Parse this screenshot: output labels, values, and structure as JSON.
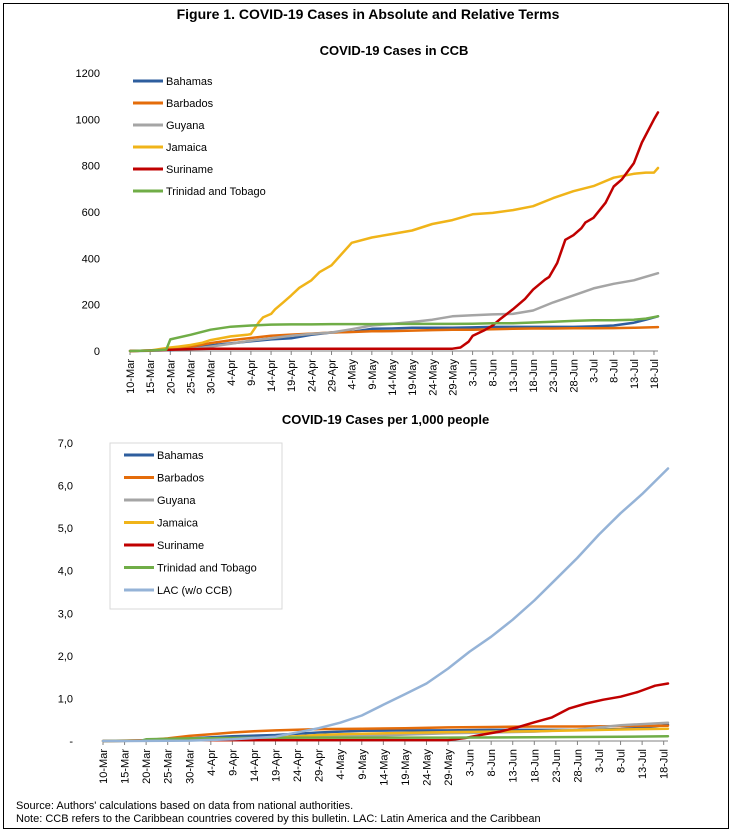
{
  "figure": {
    "title": "Figure 1. COVID-19 Cases in Absolute and Relative Terms",
    "source": "Source: Authors' calculations based on data from national authorities.",
    "note": "Note: CCB refers to the Caribbean countries covered by this bulletin. LAC: Latin America and the Caribbean"
  },
  "chart_data": [
    {
      "type": "line",
      "title": "COVID-19 Cases in CCB",
      "xlabel": "",
      "ylabel": "",
      "categories": [
        "10-Mar",
        "15-Mar",
        "20-Mar",
        "25-Mar",
        "30-Mar",
        "4-Apr",
        "9-Apr",
        "14-Apr",
        "19-Apr",
        "24-Apr",
        "29-Apr",
        "4-May",
        "9-May",
        "14-May",
        "19-May",
        "24-May",
        "29-May",
        "3-Jun",
        "8-Jun",
        "13-Jun",
        "18-Jun",
        "23-Jun",
        "28-Jun",
        "3-Jul",
        "8-Jul",
        "13-Jul",
        "18-Jul"
      ],
      "x_day_range": [
        0,
        131
      ],
      "ylim": [
        0,
        1200
      ],
      "yticks": [
        0,
        200,
        400,
        600,
        800,
        1000,
        1200
      ],
      "ytick_labels": [
        "0",
        "200",
        "400",
        "600",
        "800",
        "1000",
        "1200"
      ],
      "legend_position": "top-left",
      "series": [
        {
          "name": "Bahamas",
          "color": "#2e5e9e",
          "x": [
            0,
            5,
            10,
            15,
            20,
            25,
            30,
            35,
            40,
            45,
            50,
            55,
            60,
            65,
            70,
            75,
            80,
            85,
            90,
            95,
            100,
            105,
            110,
            115,
            120,
            125,
            128,
            131
          ],
          "y": [
            0,
            1,
            4,
            11,
            24,
            33,
            42,
            50,
            55,
            70,
            80,
            83,
            96,
            97,
            100,
            100,
            100,
            102,
            104,
            104,
            104,
            104,
            104,
            106,
            110,
            122,
            135,
            150
          ]
        },
        {
          "name": "Barbados",
          "color": "#e46c0a",
          "x": [
            0,
            5,
            10,
            15,
            20,
            25,
            30,
            35,
            40,
            45,
            50,
            55,
            60,
            65,
            70,
            75,
            80,
            85,
            90,
            95,
            100,
            105,
            110,
            115,
            120,
            125,
            131
          ],
          "y": [
            0,
            2,
            6,
            18,
            34,
            46,
            56,
            66,
            71,
            75,
            80,
            82,
            85,
            86,
            88,
            90,
            92,
            92,
            94,
            96,
            97,
            97,
            98,
            98,
            99,
            100,
            103
          ]
        },
        {
          "name": "Guyana",
          "color": "#a5a5a5",
          "x": [
            0,
            5,
            10,
            15,
            20,
            25,
            30,
            35,
            40,
            45,
            50,
            55,
            60,
            65,
            70,
            75,
            80,
            85,
            90,
            95,
            100,
            105,
            110,
            115,
            120,
            125,
            131
          ],
          "y": [
            0,
            1,
            5,
            8,
            19,
            31,
            45,
            55,
            66,
            74,
            80,
            94,
            110,
            117,
            125,
            135,
            150,
            154,
            158,
            160,
            175,
            210,
            240,
            270,
            290,
            305,
            336
          ]
        },
        {
          "name": "Jamaica",
          "color": "#f0b419",
          "x": [
            0,
            5,
            10,
            12,
            15,
            18,
            20,
            25,
            29,
            30,
            32,
            33,
            35,
            36,
            38,
            40,
            42,
            45,
            47,
            50,
            55,
            60,
            65,
            70,
            75,
            80,
            85,
            90,
            95,
            100,
            105,
            110,
            115,
            120,
            125,
            128,
            130,
            131
          ],
          "y": [
            0,
            2,
            15,
            19,
            26,
            36,
            47,
            63,
            70,
            73,
            125,
            145,
            160,
            180,
            210,
            240,
            273,
            305,
            340,
            370,
            467,
            490,
            505,
            520,
            548,
            565,
            590,
            596,
            608,
            625,
            660,
            690,
            712,
            748,
            765,
            770,
            770,
            790
          ]
        },
        {
          "name": "Suriname",
          "color": "#c00000",
          "x": [
            0,
            5,
            10,
            15,
            20,
            25,
            30,
            35,
            40,
            45,
            50,
            55,
            60,
            65,
            70,
            75,
            80,
            82,
            84,
            85,
            87,
            88,
            90,
            92,
            95,
            98,
            100,
            103,
            104,
            106,
            108,
            110,
            112,
            113,
            115,
            118,
            120,
            122,
            125,
            127,
            130,
            131
          ],
          "y": [
            0,
            2,
            5,
            8,
            10,
            10,
            10,
            10,
            10,
            10,
            10,
            10,
            10,
            10,
            10,
            10,
            10,
            15,
            40,
            65,
            82,
            90,
            110,
            140,
            180,
            225,
            265,
            308,
            320,
            380,
            480,
            500,
            530,
            555,
            575,
            640,
            710,
            740,
            810,
            900,
            1000,
            1030
          ]
        },
        {
          "name": "Trinidad and Tobago",
          "color": "#70ad47",
          "x": [
            0,
            5,
            9,
            10,
            15,
            20,
            25,
            30,
            35,
            40,
            45,
            50,
            55,
            60,
            65,
            70,
            75,
            80,
            85,
            90,
            95,
            100,
            105,
            110,
            115,
            120,
            125,
            128,
            131
          ],
          "y": [
            0,
            2,
            6,
            50,
            70,
            92,
            105,
            110,
            114,
            115,
            115,
            116,
            116,
            116,
            117,
            117,
            117,
            117,
            118,
            120,
            120,
            123,
            126,
            130,
            133,
            133,
            135,
            140,
            150
          ]
        }
      ]
    },
    {
      "type": "line",
      "title": "COVID-19 Cases per 1,000 people",
      "xlabel": "",
      "ylabel": "",
      "categories": [
        "10-Mar",
        "15-Mar",
        "20-Mar",
        "25-Mar",
        "30-Mar",
        "4-Apr",
        "9-Apr",
        "14-Apr",
        "19-Apr",
        "24-Apr",
        "29-Apr",
        "4-May",
        "9-May",
        "14-May",
        "19-May",
        "24-May",
        "29-May",
        "3-Jun",
        "8-Jun",
        "13-Jun",
        "18-Jun",
        "23-Jun",
        "28-Jun",
        "3-Jul",
        "8-Jul",
        "13-Jul",
        "18-Jul"
      ],
      "x_day_range": [
        0,
        131
      ],
      "ylim": [
        0,
        7
      ],
      "yticks": [
        0,
        1,
        2,
        3,
        4,
        5,
        6,
        7
      ],
      "ytick_labels": [
        "-",
        "1,0",
        "2,0",
        "3,0",
        "4,0",
        "5,0",
        "6,0",
        "7,0"
      ],
      "legend_position": "top-left",
      "series": [
        {
          "name": "Bahamas",
          "color": "#2e5e9e",
          "x": [
            0,
            10,
            20,
            30,
            40,
            50,
            60,
            70,
            80,
            90,
            100,
            110,
            120,
            125,
            131
          ],
          "y": [
            0,
            0.01,
            0.06,
            0.11,
            0.14,
            0.2,
            0.24,
            0.25,
            0.25,
            0.26,
            0.26,
            0.26,
            0.28,
            0.31,
            0.38
          ]
        },
        {
          "name": "Barbados",
          "color": "#e46c0a",
          "x": [
            0,
            10,
            15,
            20,
            25,
            30,
            35,
            40,
            50,
            60,
            70,
            80,
            90,
            100,
            110,
            120,
            131
          ],
          "y": [
            0,
            0.02,
            0.06,
            0.12,
            0.16,
            0.2,
            0.23,
            0.25,
            0.28,
            0.29,
            0.3,
            0.32,
            0.33,
            0.34,
            0.34,
            0.35,
            0.36
          ]
        },
        {
          "name": "Guyana",
          "color": "#a5a5a5",
          "x": [
            0,
            20,
            40,
            60,
            80,
            90,
            100,
            110,
            120,
            131
          ],
          "y": [
            0,
            0.02,
            0.07,
            0.12,
            0.18,
            0.2,
            0.22,
            0.27,
            0.37,
            0.43
          ]
        },
        {
          "name": "Jamaica",
          "color": "#f0b419",
          "x": [
            0,
            10,
            20,
            30,
            35,
            40,
            45,
            50,
            55,
            60,
            70,
            80,
            90,
            100,
            110,
            120,
            131
          ],
          "y": [
            0,
            0.01,
            0.02,
            0.02,
            0.06,
            0.08,
            0.11,
            0.14,
            0.16,
            0.17,
            0.19,
            0.21,
            0.22,
            0.23,
            0.25,
            0.27,
            0.29
          ]
        },
        {
          "name": "Suriname",
          "color": "#c00000",
          "x": [
            0,
            20,
            40,
            60,
            80,
            84,
            88,
            92,
            96,
            100,
            104,
            108,
            112,
            116,
            120,
            124,
            128,
            131
          ],
          "y": [
            0,
            0.02,
            0.02,
            0.02,
            0.02,
            0.07,
            0.15,
            0.22,
            0.32,
            0.44,
            0.55,
            0.76,
            0.88,
            0.97,
            1.04,
            1.15,
            1.3,
            1.35
          ]
        },
        {
          "name": "Trinidad and Tobago",
          "color": "#70ad47",
          "x": [
            0,
            9,
            10,
            20,
            30,
            40,
            60,
            80,
            100,
            120,
            131
          ],
          "y": [
            0,
            0.01,
            0.04,
            0.06,
            0.07,
            0.08,
            0.08,
            0.08,
            0.09,
            0.1,
            0.11
          ]
        },
        {
          "name": "LAC (w/o CCB)",
          "color": "#95b3d7",
          "x": [
            0,
            10,
            20,
            30,
            40,
            50,
            55,
            60,
            65,
            70,
            75,
            80,
            85,
            90,
            95,
            100,
            105,
            110,
            115,
            120,
            125,
            131
          ],
          "y": [
            0,
            0.002,
            0.01,
            0.04,
            0.1,
            0.3,
            0.43,
            0.6,
            0.85,
            1.1,
            1.35,
            1.7,
            2.1,
            2.45,
            2.85,
            3.3,
            3.8,
            4.3,
            4.85,
            5.35,
            5.8,
            6.4
          ]
        }
      ]
    }
  ]
}
